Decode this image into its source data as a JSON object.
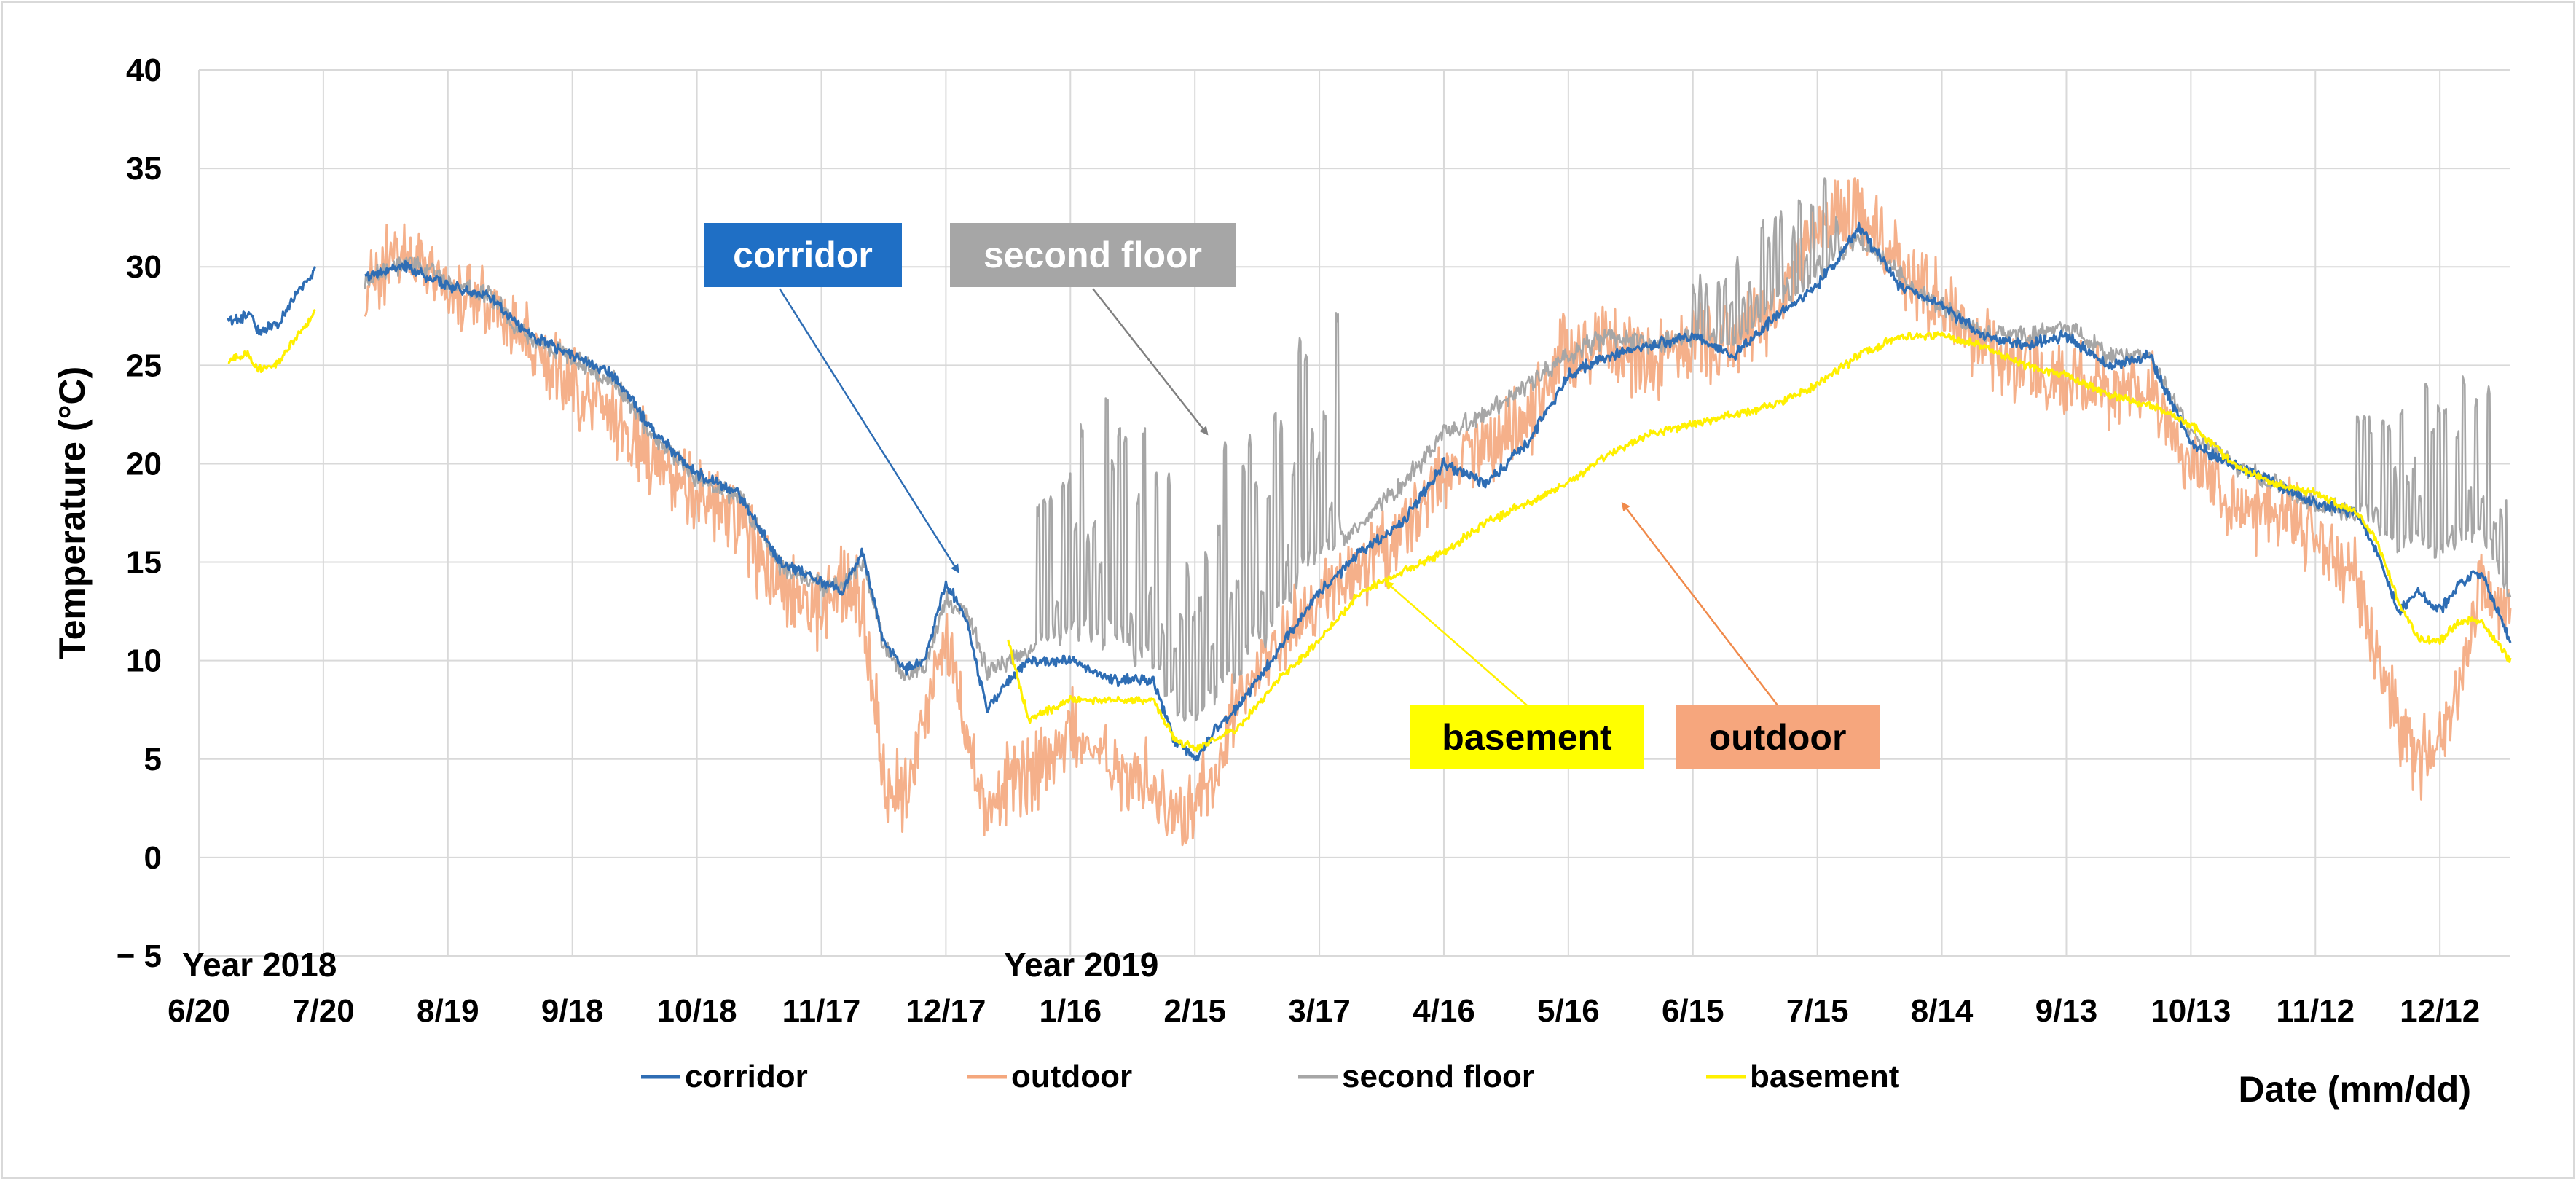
{
  "chart_data": {
    "type": "line",
    "title": "",
    "ylabel": "Temperature (°C)",
    "xlabel": "Date (mm/dd)",
    "ylim": [
      -5,
      40
    ],
    "yticks": [
      -5,
      0,
      5,
      10,
      15,
      20,
      25,
      30,
      35,
      40
    ],
    "ytick_labels": [
      "− 5",
      "0",
      "5",
      "10",
      "15",
      "20",
      "25",
      "30",
      "35",
      "40"
    ],
    "xlim_days": [
      0,
      557
    ],
    "x_tick_days": [
      0,
      30,
      60,
      90,
      120,
      150,
      180,
      210,
      240,
      270,
      300,
      330,
      360,
      390,
      420,
      450,
      480,
      510,
      540
    ],
    "x_tick_labels": [
      "6/20",
      "7/20",
      "8/19",
      "9/18",
      "10/18",
      "11/17",
      "12/17",
      "1/16",
      "2/15",
      "3/17",
      "4/16",
      "5/16",
      "6/15",
      "7/15",
      "8/14",
      "9/13",
      "10/13",
      "11/12",
      "12/12"
    ],
    "x_unit_note": "days since 2018-06-20",
    "year_labels": [
      "Year 2018",
      "Year 2019"
    ],
    "gridlines": true,
    "legend": {
      "position": "bottom",
      "entries": [
        {
          "label": "corridor",
          "color": "#2E6DB4"
        },
        {
          "label": "outdoor",
          "color": "#F4A77D"
        },
        {
          "label": "second floor",
          "color": "#A6A6A6"
        },
        {
          "label": "basement",
          "color": "#FFF000"
        }
      ]
    },
    "callouts": [
      {
        "label": "corridor",
        "bg": "#1F6FC5",
        "fg": "#ffffff",
        "points_to_day": 183,
        "points_to_value": 14.5
      },
      {
        "label": "second floor",
        "bg": "#A6A6A6",
        "fg": "#ffffff",
        "points_to_day": 243,
        "points_to_value": 21.5
      },
      {
        "label": "basement",
        "bg": "#FFFF00",
        "fg": "#000000",
        "points_to_day": 286,
        "points_to_value": 14
      },
      {
        "label": "outdoor",
        "bg": "#F6A67D",
        "fg": "#000000",
        "points_to_day": 343,
        "points_to_value": 18
      }
    ],
    "gaps": [
      [
        14,
        27
      ],
      [
        28,
        40
      ]
    ],
    "series": [
      {
        "name": "corridor",
        "color": "#2E6DB4",
        "noise": 0.35,
        "segments": [
          {
            "x": [
              7,
              12,
              14,
              19,
              23,
              25,
              27,
              28
            ],
            "y": [
              27.2,
              27.6,
              26.8,
              27.0,
              28.5,
              29.0,
              29.5,
              30.0
            ]
          },
          {
            "x": [
              40,
              50,
              60,
              70,
              80,
              90,
              100,
              110,
              120,
              130,
              140,
              150,
              155,
              160,
              165,
              170,
              175,
              180,
              185,
              190,
              195,
              200,
              210,
              220,
              230,
              235,
              240,
              245,
              250,
              260,
              270,
              280,
              290,
              300,
              310,
              320,
              330,
              340,
              350,
              360,
              370,
              380,
              390,
              400,
              410,
              420,
              430,
              440,
              450,
              460,
              470,
              480,
              490,
              500,
              510,
              520,
              525,
              530,
              535,
              540,
              545,
              550,
              557
            ],
            "y": [
              29.5,
              30.0,
              29.0,
              28.5,
              26.5,
              25.5,
              24.5,
              21.5,
              19.5,
              18.5,
              15.0,
              14.0,
              13.5,
              15.5,
              11.0,
              9.5,
              10.0,
              14.0,
              12.0,
              7.5,
              9.0,
              10.0,
              10.0,
              9.0,
              9.0,
              6.0,
              5.0,
              6.5,
              7.5,
              10.5,
              13.5,
              15.5,
              17.0,
              20.0,
              19.0,
              21.0,
              24.5,
              25.5,
              26.0,
              26.5,
              25.5,
              27.5,
              29.0,
              32.0,
              29.0,
              28.0,
              26.5,
              26.0,
              26.5,
              25.0,
              25.5,
              21.0,
              20.0,
              19.0,
              18.0,
              17.5,
              15.5,
              12.5,
              13.5,
              12.5,
              14.0,
              14.5,
              11.0
            ]
          }
        ]
      },
      {
        "name": "outdoor",
        "color": "#F4A77D",
        "noise": 2.4,
        "segments": [
          {
            "x": [
              40,
              50,
              60,
              70,
              80,
              90,
              100,
              110,
              120,
              130,
              140,
              150,
              155,
              160,
              165,
              170,
              175,
              180,
              185,
              190,
              195,
              200,
              210,
              220,
              230,
              235,
              240,
              245,
              250,
              260,
              270,
              280,
              290,
              300,
              310,
              320,
              330,
              340,
              350,
              360,
              370,
              380,
              390,
              400,
              410,
              420,
              430,
              440,
              450,
              460,
              470,
              480,
              490,
              500,
              510,
              520,
              525,
              530,
              535,
              540,
              545,
              550,
              557
            ],
            "y": [
              29.0,
              31.0,
              29.0,
              28.0,
              26.0,
              24.0,
              22.5,
              20.0,
              18.5,
              17.0,
              13.5,
              12.5,
              14.0,
              13.0,
              4.0,
              3.0,
              7.0,
              11.5,
              6.0,
              2.0,
              4.0,
              4.0,
              6.5,
              4.5,
              4.0,
              2.0,
              2.5,
              4.0,
              8.0,
              11.0,
              13.0,
              14.5,
              16.5,
              19.5,
              21.0,
              22.0,
              26.0,
              26.0,
              25.0,
              26.0,
              26.0,
              28.0,
              32.0,
              33.0,
              30.0,
              28.0,
              26.0,
              25.0,
              24.0,
              24.0,
              24.0,
              20.0,
              18.0,
              17.5,
              16.5,
              14.0,
              10.0,
              7.0,
              5.0,
              6.0,
              9.0,
              14.0,
              12.0
            ]
          }
        ]
      },
      {
        "name": "second floor",
        "color": "#A6A6A6",
        "noise": 0.6,
        "segments": [
          {
            "x": [
              40,
              50,
              60,
              70,
              80,
              90,
              100,
              110,
              120,
              130,
              140,
              150,
              155,
              160,
              165,
              170,
              175,
              180,
              185,
              190,
              195,
              200,
              210,
              220,
              230,
              235,
              240,
              245,
              250,
              260,
              270,
              280,
              290,
              300,
              310,
              320,
              330,
              340,
              350,
              360,
              370,
              380,
              390,
              400,
              410,
              420,
              430,
              440,
              450,
              460,
              470,
              480,
              490,
              500,
              510,
              520,
              525,
              530,
              535,
              540,
              545,
              550,
              557
            ],
            "y": [
              29.3,
              30.3,
              29.2,
              28.5,
              26.3,
              25.3,
              24.2,
              21.3,
              19.3,
              18.3,
              14.8,
              13.8,
              13.8,
              15.0,
              10.8,
              9.3,
              9.8,
              13.0,
              12.5,
              9.5,
              10.0,
              10.5,
              11.0,
              10.5,
              9.5,
              7.0,
              6.5,
              8.0,
              9.0,
              12.0,
              15.0,
              17.0,
              19.0,
              21.5,
              22.5,
              24.0,
              25.5,
              26.5,
              26.0,
              26.5,
              26.0,
              28.0,
              29.5,
              31.5,
              29.5,
              28.0,
              26.5,
              26.5,
              27.0,
              25.5,
              25.5,
              21.5,
              20.0,
              19.0,
              18.0,
              17.5,
              17.0,
              15.5,
              16.0,
              15.0,
              16.0,
              16.5,
              13.0
            ]
          }
        ],
        "spikes": [
          {
            "x_range": [
              202,
              275
            ],
            "base_offset": 8.0,
            "amp": 11.0,
            "step": 1.5
          },
          {
            "x_range": [
              360,
              395
            ],
            "base_offset": 1.5,
            "amp": 4.5,
            "step": 1.5
          },
          {
            "x_range": [
              520,
              556
            ],
            "base_offset": 3.0,
            "amp": 8.0,
            "step": 1.5
          }
        ]
      },
      {
        "name": "basement",
        "color": "#FFF000",
        "noise": 0.25,
        "segments": [
          {
            "x": [
              7,
              12,
              14,
              19,
              23,
              25,
              27,
              28
            ],
            "y": [
              25.2,
              25.6,
              24.8,
              25.0,
              26.3,
              26.8,
              27.3,
              27.8
            ]
          },
          {
            "x": [
              195,
              200,
              210,
              220,
              230,
              235,
              240,
              245,
              250,
              260,
              270,
              280,
              290,
              300,
              310,
              320,
              330,
              340,
              350,
              360,
              370,
              380,
              390,
              400,
              410,
              420,
              430,
              440,
              450,
              460,
              470,
              480,
              490,
              500,
              510,
              520,
              525,
              530,
              535,
              540,
              545,
              550,
              557
            ],
            "y": [
              11.0,
              7.0,
              8.0,
              8.0,
              8.0,
              6.0,
              5.5,
              6.0,
              6.5,
              9.0,
              11.0,
              13.5,
              14.5,
              15.5,
              17.0,
              18.0,
              19.0,
              20.5,
              21.5,
              22.0,
              22.5,
              23.0,
              24.0,
              25.5,
              26.5,
              26.5,
              26.0,
              25.0,
              24.5,
              23.5,
              23.0,
              22.0,
              20.0,
              19.0,
              18.5,
              17.5,
              16.0,
              13.0,
              11.0,
              11.0,
              12.0,
              12.0,
              10.0
            ]
          }
        ]
      }
    ]
  }
}
